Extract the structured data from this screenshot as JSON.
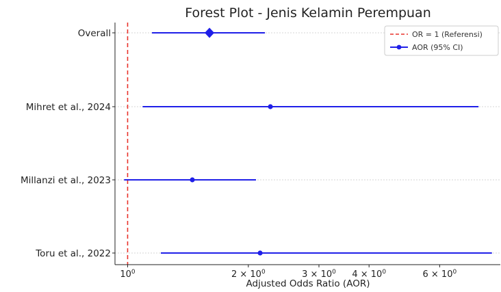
{
  "chart_data": {
    "type": "scatter",
    "title": "Forest Plot - Jenis Kelamin Perempuan",
    "xlabel": "Adjusted Odds Ratio (AOR)",
    "ylabel": "",
    "x_scale": "log",
    "xlim": [
      0.93,
      8.5
    ],
    "x_ticks": [
      {
        "value": 1,
        "base": "10",
        "exp": "0"
      },
      {
        "value": 2,
        "base": "2 × 10",
        "exp": "0"
      },
      {
        "value": 3,
        "base": "3 × 10",
        "exp": "0"
      },
      {
        "value": 4,
        "base": "4 × 10",
        "exp": "0"
      },
      {
        "value": 6,
        "base": "6 × 10",
        "exp": "0"
      }
    ],
    "grid": "horizontal dotted",
    "legend_position": "top-right",
    "reference_line": {
      "value": 1,
      "label": "OR = 1 (Referensi)",
      "color": "#e8312a"
    },
    "series_color": "#1f1fe8",
    "studies": [
      {
        "label": "Overall",
        "aor": 1.6,
        "ci_low": 1.15,
        "ci_high": 2.2,
        "marker": "diamond"
      },
      {
        "label": "Mihret et al., 2024",
        "aor": 2.27,
        "ci_low": 1.09,
        "ci_high": 7.5,
        "marker": "circle"
      },
      {
        "label": "Millanzi et al., 2023",
        "aor": 1.45,
        "ci_low": 0.98,
        "ci_high": 2.09,
        "marker": "circle"
      },
      {
        "label": "Toru et al., 2022",
        "aor": 2.14,
        "ci_low": 1.21,
        "ci_high": 8.1,
        "marker": "circle"
      }
    ],
    "legend": [
      {
        "label": "OR = 1 (Referensi)",
        "kind": "dashed-line"
      },
      {
        "label": "AOR (95% CI)",
        "kind": "point-with-line"
      }
    ]
  }
}
